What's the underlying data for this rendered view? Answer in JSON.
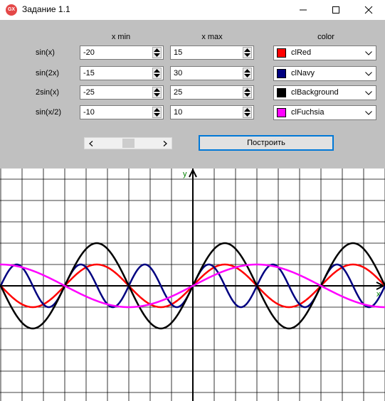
{
  "window": {
    "title": "Задание 1.1",
    "icon_text": "GX"
  },
  "table": {
    "headers": {
      "xmin": "x min",
      "xmax": "x max",
      "color": "color"
    },
    "rows": [
      {
        "label": "sin(x)",
        "xmin": "-20",
        "xmax": "15",
        "color_name": "clRed",
        "color": "#ff0000"
      },
      {
        "label": "sin(2x)",
        "xmin": "-15",
        "xmax": "30",
        "color_name": "clNavy",
        "color": "#000080"
      },
      {
        "label": "2sin(x)",
        "xmin": "-25",
        "xmax": "25",
        "color_name": "clBackground",
        "color": "#000000"
      },
      {
        "label": "sin(x/2)",
        "xmin": "-10",
        "xmax": "10",
        "color_name": "clFuchsia",
        "color": "#ff00ff"
      }
    ]
  },
  "build_button": "Построить",
  "graph": {
    "y_label": "y",
    "x_label": "x",
    "axis_color": "#000000",
    "label_color": "#008000",
    "grid_color": "#000000",
    "curves": [
      {
        "fn": "sin(x)",
        "color": "#ff0000"
      },
      {
        "fn": "sin(2x)",
        "color": "#000080"
      },
      {
        "fn": "2sin(x)",
        "color": "#000000"
      },
      {
        "fn": "sin(x/2)",
        "color": "#ff00ff"
      }
    ]
  }
}
